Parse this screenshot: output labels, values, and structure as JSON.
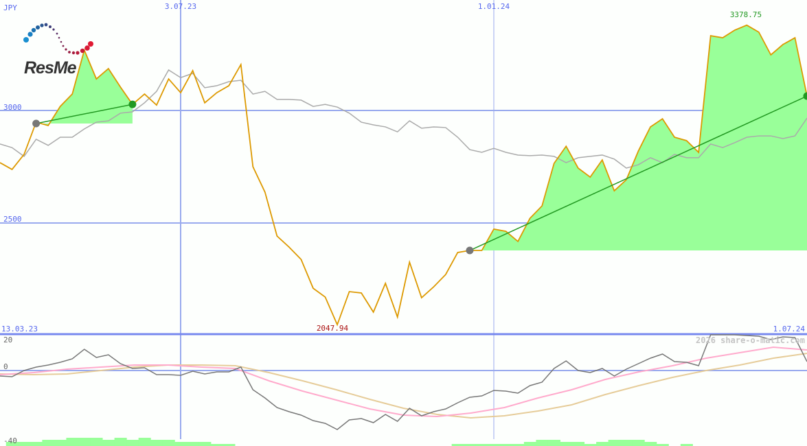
{
  "chart_data": [
    {
      "type": "line",
      "currency": "JPY",
      "logo": "ResMed",
      "x_tick_labels": [
        "3.07.23",
        "1.01.24"
      ],
      "y_tick_labels": [
        "3000",
        "2500"
      ],
      "yticks": [
        3000,
        2500
      ],
      "x_range_labels": {
        "start": "13.03.23",
        "end": "1.07.24"
      },
      "annotations": {
        "max_label": "3378.75",
        "min_label": "2047.94"
      },
      "colors": {
        "price": "#dd9900",
        "benchmark": "#aaaaaa",
        "trend": "#229922",
        "fill": "#99ff99",
        "grid": "#99aaee"
      },
      "series": [
        {
          "key": "price",
          "values": [
            2768,
            2738,
            2805,
            2948,
            2933,
            3018,
            3073,
            3268,
            3140,
            3186,
            3104,
            3027,
            3073,
            3024,
            3140,
            3079,
            3177,
            3034,
            3079,
            3110,
            3204,
            2750,
            2637,
            2442,
            2393,
            2338,
            2210,
            2171,
            2048,
            2195,
            2189,
            2104,
            2232,
            2082,
            2326,
            2168,
            2216,
            2271,
            2369,
            2378,
            2378,
            2473,
            2463,
            2418,
            2521,
            2576,
            2765,
            2841,
            2744,
            2704,
            2780,
            2643,
            2692,
            2820,
            2927,
            2963,
            2881,
            2866,
            2814,
            3332,
            3323,
            3357,
            3379,
            3348,
            3247,
            3293,
            3323,
            3064
          ]
        },
        {
          "key": "benchmark",
          "values": [
            2851,
            2835,
            2796,
            2872,
            2845,
            2881,
            2881,
            2918,
            2948,
            2954,
            2988,
            2994,
            3034,
            3085,
            3180,
            3146,
            3165,
            3101,
            3110,
            3128,
            3134,
            3073,
            3085,
            3049,
            3049,
            3046,
            3018,
            3027,
            3015,
            2988,
            2948,
            2936,
            2927,
            2905,
            2954,
            2921,
            2927,
            2924,
            2881,
            2826,
            2814,
            2832,
            2814,
            2802,
            2799,
            2802,
            2796,
            2768,
            2790,
            2796,
            2802,
            2784,
            2744,
            2759,
            2790,
            2768,
            2805,
            2790,
            2790,
            2851,
            2835,
            2857,
            2881,
            2887,
            2887,
            2875,
            2887,
            2966
          ]
        }
      ],
      "trends": [
        {
          "from_index": 3,
          "to_index": 11,
          "from_value": 2942,
          "to_value": 3027
        },
        {
          "from_index": 39,
          "to_index": 67,
          "from_value": 2378,
          "to_value": 3064
        }
      ],
      "ylim": [
        2000,
        3400
      ]
    },
    {
      "type": "line",
      "y_tick_labels": [
        "20",
        "0",
        "-40"
      ],
      "yticks": [
        20,
        0,
        -40
      ],
      "ylim": [
        -44,
        20
      ],
      "watermark": "2026 share-o-matic.com",
      "colors": {
        "oscillator": "#777777",
        "fast": "#ffaacc",
        "slow": "#e6cc99",
        "volume": "#99ff99"
      },
      "oscillator": [
        -3.2,
        -3.6,
        0,
        2,
        3.2,
        4.8,
        6.8,
        12.4,
        7.6,
        9.2,
        4,
        1.2,
        1.6,
        -2.4,
        -2.4,
        -2.8,
        -0.4,
        -2,
        -0.8,
        -0.8,
        2,
        -11.2,
        -16,
        -21.6,
        -24,
        -26,
        -29.2,
        -30.8,
        -34.4,
        -28.8,
        -28,
        -30.4,
        -25.6,
        -29.6,
        -22,
        -26.4,
        -24,
        -22.4,
        -18.8,
        -15.6,
        -14.8,
        -11.6,
        -12,
        -13.2,
        -8.8,
        -6.8,
        1.2,
        5.6,
        0,
        -1.2,
        1.2,
        -3.2,
        0.8,
        4,
        7.2,
        9.6,
        5.2,
        4.8,
        2.8,
        20.8,
        20.8,
        20.8,
        20.4,
        20,
        18,
        19.6,
        19.2,
        5.2
      ],
      "fast_avg": [
        -2.4,
        -1.2,
        0.8,
        2,
        3.2,
        3.2,
        2,
        1.2,
        -6,
        -12,
        -17.2,
        -22.4,
        -26,
        -26.8,
        -24.8,
        -21.6,
        -16,
        -11.2,
        -5.2,
        -0.8,
        2.8,
        7.2,
        10.4,
        13.6,
        12
      ],
      "slow_avg": [
        -2,
        -2.4,
        -2,
        0,
        2,
        3.2,
        3.2,
        2.8,
        -1.2,
        -6,
        -11.2,
        -16.8,
        -22,
        -25.6,
        -27.6,
        -26.4,
        -23.6,
        -20,
        -14,
        -8.8,
        -4,
        0,
        3.2,
        7.2,
        10
      ],
      "volume_relative": [
        0,
        2,
        2,
        2,
        3,
        3,
        4,
        4,
        4,
        3,
        4,
        3,
        4,
        3,
        3,
        2,
        2,
        2,
        1,
        1,
        0,
        0,
        0,
        0,
        0,
        0,
        0,
        0,
        0,
        0,
        0,
        0,
        0,
        0,
        0,
        0,
        0,
        0,
        1,
        1,
        1,
        1,
        1,
        1,
        2,
        3,
        3,
        2,
        2,
        1,
        2,
        3,
        3,
        3,
        2,
        1,
        0,
        1,
        0,
        0,
        0,
        0,
        0,
        0,
        0,
        0,
        0,
        0
      ]
    }
  ]
}
